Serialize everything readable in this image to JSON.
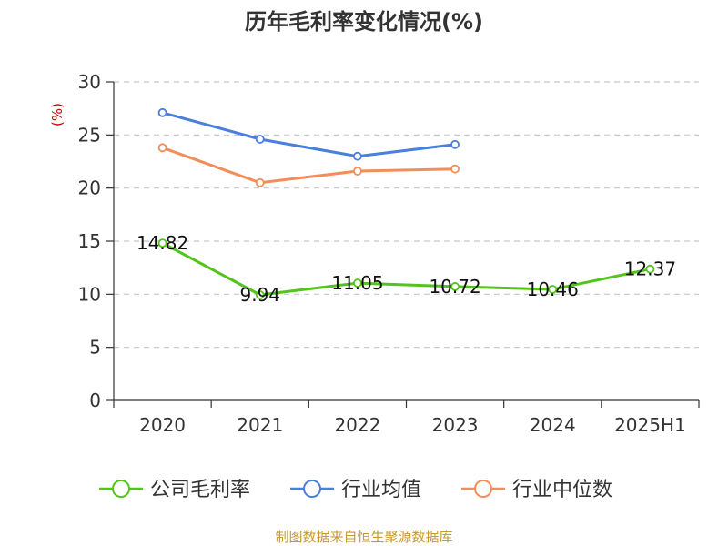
{
  "chart_data": {
    "type": "line",
    "title": "历年毛利率变化情况(%)",
    "ylabel": "(%)",
    "xlabel": "",
    "categories": [
      "2020",
      "2021",
      "2022",
      "2023",
      "2024",
      "2025H1"
    ],
    "ylim": [
      0,
      30
    ],
    "yticks": [
      0,
      5,
      10,
      15,
      20,
      25,
      30
    ],
    "grid": true,
    "legend_position": "bottom",
    "series": [
      {
        "name": "公司毛利率",
        "color": "#52c41a",
        "values": [
          14.82,
          9.94,
          11.05,
          10.72,
          10.46,
          12.37
        ],
        "labels": [
          "14.82",
          "9.94",
          "11.05",
          "10.72",
          "10.46",
          "12.37"
        ]
      },
      {
        "name": "行业均值",
        "color": "#4a7fdc",
        "values": [
          27.1,
          24.6,
          23.0,
          24.1,
          null,
          null
        ]
      },
      {
        "name": "行业中位数",
        "color": "#f28e5b",
        "values": [
          23.8,
          20.5,
          21.6,
          21.8,
          null,
          null
        ]
      }
    ]
  },
  "source": "制图数据来自恒生聚源数据库"
}
